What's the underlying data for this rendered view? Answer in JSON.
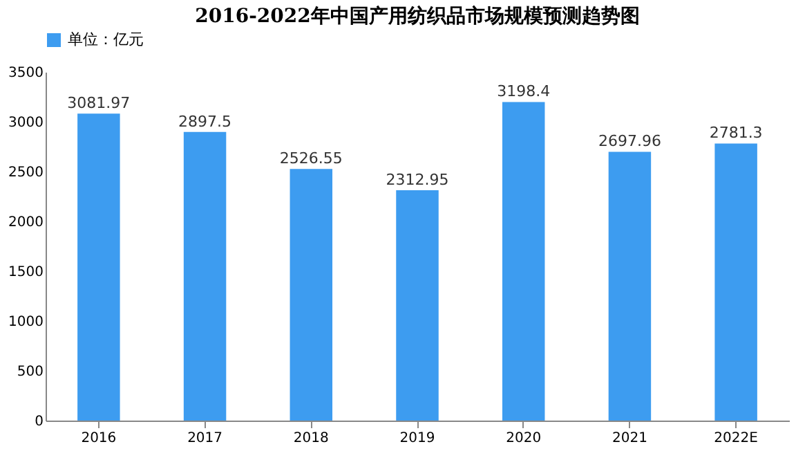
{
  "chart_data": {
    "type": "bar",
    "title": "2016-2022年中国产用纺织品市场规模预测趋势图",
    "categories": [
      "2016",
      "2017",
      "2018",
      "2019",
      "2020",
      "2021",
      "2022E"
    ],
    "series": [
      {
        "name": "单位：亿元",
        "color": "#3d9cf0",
        "values": [
          3081.97,
          2897.5,
          2526.55,
          2312.95,
          3198.4,
          2697.96,
          2781.3
        ]
      }
    ],
    "ylim": [
      0,
      3500
    ],
    "yticks": [
      0,
      500,
      1000,
      1500,
      2000,
      2500,
      3000,
      3500
    ],
    "grid": false,
    "legend": "top",
    "data_labels": true
  }
}
